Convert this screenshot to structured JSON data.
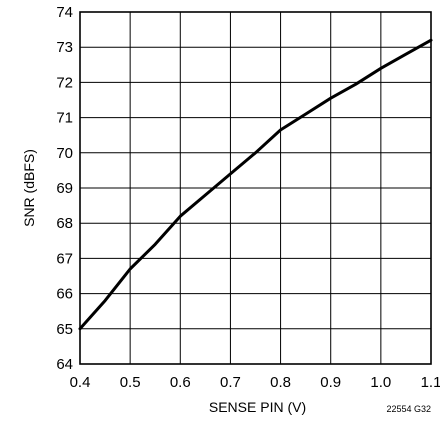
{
  "chart_data": {
    "type": "line",
    "title": "",
    "xlabel": "SENSE PIN (V)",
    "ylabel": "SNR (dBFS)",
    "xlim": [
      0.4,
      1.1
    ],
    "ylim": [
      64,
      74
    ],
    "xticks": [
      0.4,
      0.5,
      0.6,
      0.7,
      0.8,
      0.9,
      1.0,
      1.1
    ],
    "xtick_labels": [
      "0.4",
      "0.5",
      "0.6",
      "0.7",
      "0.8",
      "0.9",
      "1.0",
      "1.1"
    ],
    "yticks": [
      64,
      65,
      66,
      67,
      68,
      69,
      70,
      71,
      72,
      73,
      74
    ],
    "yticks_labels": [
      "64",
      "65",
      "66",
      "67",
      "68",
      "69",
      "70",
      "71",
      "72",
      "73",
      "74"
    ],
    "grid": true,
    "legend": false,
    "figure_id": "22554 G32",
    "line_color": "#000000",
    "series": [
      {
        "x": [
          0.4,
          0.45,
          0.5,
          0.55,
          0.6,
          0.65,
          0.7,
          0.75,
          0.8,
          0.85,
          0.9,
          0.95,
          1.0,
          1.05,
          1.1
        ],
        "y": [
          65.0,
          65.8,
          66.7,
          67.4,
          68.2,
          68.8,
          69.4,
          70.0,
          70.65,
          71.1,
          71.55,
          71.95,
          72.4,
          72.8,
          73.2
        ]
      }
    ]
  }
}
